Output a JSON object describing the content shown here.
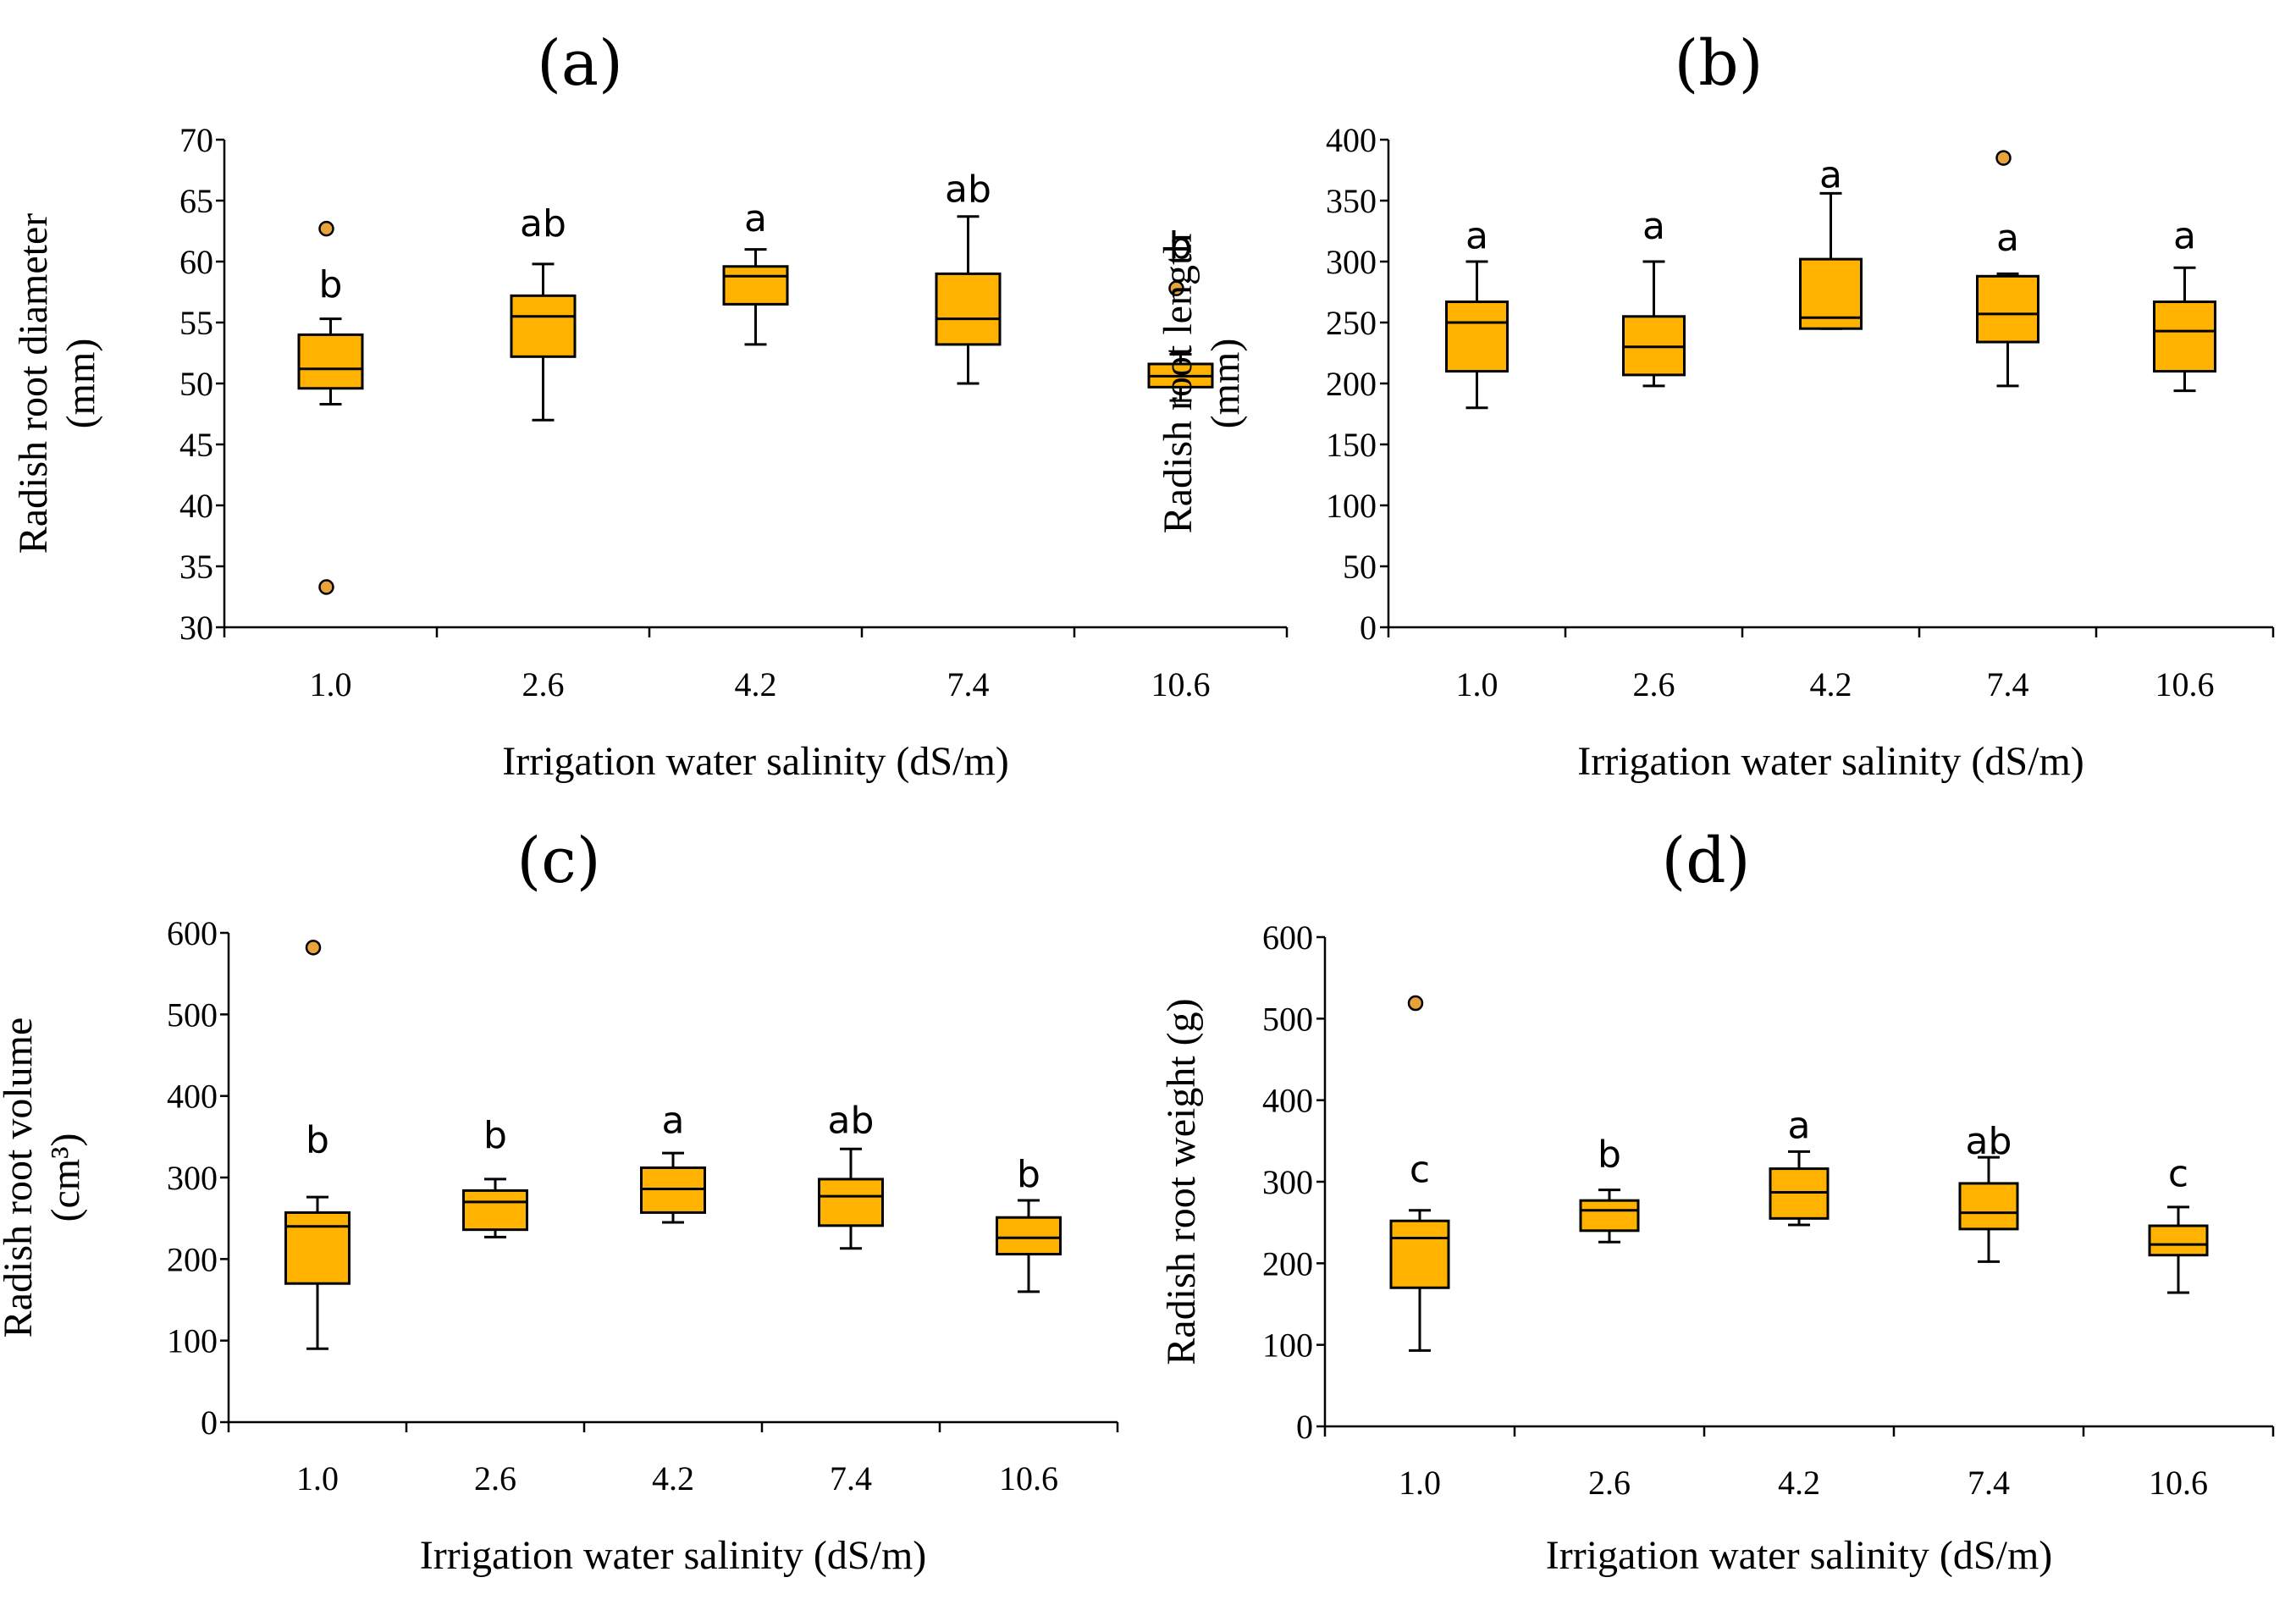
{
  "colors": {
    "box_fill": "#FFB300",
    "outlier_fill": "#E8A33C",
    "axis": "#000000"
  },
  "chart_data": [
    {
      "type": "box",
      "title": "(a)",
      "xlabel": "Irrigation water salinity (dS/m)",
      "ylabel": [
        "Radish root diameter",
        "(mm)"
      ],
      "ylim": [
        30,
        70
      ],
      "yticks": [
        30,
        35,
        40,
        45,
        50,
        55,
        60,
        65,
        70
      ],
      "categories": [
        "1.0",
        "2.6",
        "4.2",
        "7.4",
        "10.6"
      ],
      "boxes": [
        {
          "min": 48.3,
          "q1": 49.6,
          "median": 51.2,
          "q3": 54.0,
          "max": 55.3,
          "outliers": [
            62.7,
            33.3
          ],
          "letter": "b",
          "letter_at": 58.2
        },
        {
          "min": 47.0,
          "q1": 52.2,
          "median": 55.5,
          "q3": 57.2,
          "max": 59.8,
          "outliers": [],
          "letter": "ab",
          "letter_at": 63.2
        },
        {
          "min": 53.2,
          "q1": 56.5,
          "median": 58.8,
          "q3": 59.6,
          "max": 61.0,
          "outliers": [],
          "letter": "a",
          "letter_at": 63.6
        },
        {
          "min": 50.0,
          "q1": 53.2,
          "median": 55.3,
          "q3": 59.0,
          "max": 63.7,
          "outliers": [],
          "letter": "ab",
          "letter_at": 66.0
        },
        {
          "min": 48.6,
          "q1": 49.7,
          "median": 50.6,
          "q3": 51.6,
          "max": 52.4,
          "outliers": [
            57.8
          ],
          "letter": "b",
          "letter_at": 61.4
        }
      ]
    },
    {
      "type": "box",
      "title": "(b)",
      "xlabel": "Irrigation water salinity (dS/m)",
      "ylabel": [
        "Radish root length",
        "(mm)"
      ],
      "ylim": [
        0,
        400
      ],
      "yticks": [
        0,
        50,
        100,
        150,
        200,
        250,
        300,
        350,
        400
      ],
      "categories": [
        "1.0",
        "2.6",
        "4.2",
        "7.4",
        "10.6"
      ],
      "boxes": [
        {
          "min": 180,
          "q1": 210,
          "median": 250,
          "q3": 267,
          "max": 300,
          "outliers": [],
          "letter": "a",
          "letter_at": 322
        },
        {
          "min": 198,
          "q1": 207,
          "median": 230,
          "q3": 255,
          "max": 300,
          "outliers": [],
          "letter": "a",
          "letter_at": 330
        },
        {
          "min": 245,
          "q1": 245,
          "median": 254,
          "q3": 302,
          "max": 356,
          "outliers": [],
          "letter": "a",
          "letter_at": 372
        },
        {
          "min": 198,
          "q1": 234,
          "median": 257,
          "q3": 288,
          "max": 290,
          "outliers": [
            385
          ],
          "letter": "a",
          "letter_at": 320
        },
        {
          "min": 194,
          "q1": 210,
          "median": 243,
          "q3": 267,
          "max": 295,
          "outliers": [],
          "letter": "a",
          "letter_at": 322
        }
      ]
    },
    {
      "type": "box",
      "title": "(c)",
      "xlabel": "Irrigation water salinity (dS/m)",
      "ylabel": [
        "Radish root volume",
        "(cm³)"
      ],
      "ylim": [
        0,
        600
      ],
      "yticks": [
        0,
        100,
        200,
        300,
        400,
        500,
        600
      ],
      "categories": [
        "1.0",
        "2.6",
        "4.2",
        "7.4",
        "10.6"
      ],
      "boxes": [
        {
          "min": 90,
          "q1": 170,
          "median": 240,
          "q3": 257,
          "max": 276,
          "outliers": [
            582
          ],
          "letter": "b",
          "letter_at": 347
        },
        {
          "min": 227,
          "q1": 236,
          "median": 270,
          "q3": 284,
          "max": 298,
          "outliers": [],
          "letter": "b",
          "letter_at": 353
        },
        {
          "min": 245,
          "q1": 257,
          "median": 286,
          "q3": 312,
          "max": 330,
          "outliers": [],
          "letter": "a",
          "letter_at": 371
        },
        {
          "min": 213,
          "q1": 241,
          "median": 277,
          "q3": 298,
          "max": 335,
          "outliers": [],
          "letter": "ab",
          "letter_at": 371
        },
        {
          "min": 160,
          "q1": 206,
          "median": 226,
          "q3": 251,
          "max": 272,
          "outliers": [],
          "letter": "b",
          "letter_at": 305
        }
      ]
    },
    {
      "type": "box",
      "title": "(d)",
      "xlabel": "Irrigation water salinity (dS/m)",
      "ylabel": [
        "Radish root weight (g)"
      ],
      "ylim": [
        0,
        600
      ],
      "yticks": [
        0,
        100,
        200,
        300,
        400,
        500,
        600
      ],
      "categories": [
        "1.0",
        "2.6",
        "4.2",
        "7.4",
        "10.6"
      ],
      "boxes": [
        {
          "min": 93,
          "q1": 170,
          "median": 231,
          "q3": 252,
          "max": 265,
          "outliers": [
            519
          ],
          "letter": "c",
          "letter_at": 316
        },
        {
          "min": 226,
          "q1": 240,
          "median": 265,
          "q3": 277,
          "max": 290,
          "outliers": [],
          "letter": "b",
          "letter_at": 335
        },
        {
          "min": 247,
          "q1": 255,
          "median": 287,
          "q3": 316,
          "max": 337,
          "outliers": [],
          "letter": "a",
          "letter_at": 370
        },
        {
          "min": 202,
          "q1": 242,
          "median": 262,
          "q3": 298,
          "max": 330,
          "outliers": [],
          "letter": "ab",
          "letter_at": 351
        },
        {
          "min": 164,
          "q1": 210,
          "median": 223,
          "q3": 246,
          "max": 269,
          "outliers": [],
          "letter": "c",
          "letter_at": 311
        }
      ]
    }
  ]
}
